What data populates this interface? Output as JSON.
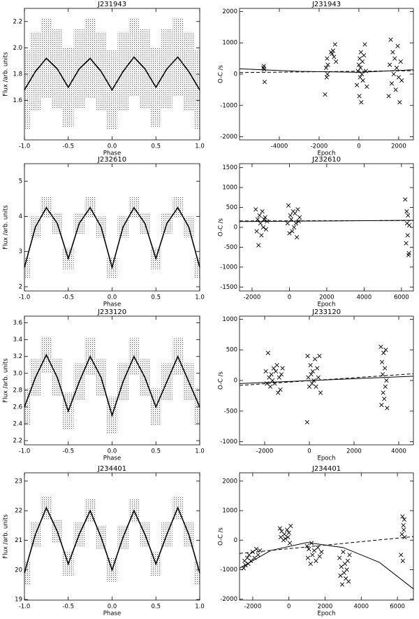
{
  "chart_data": [
    {
      "type": "line",
      "title": "J231943",
      "xlabel": "Phase",
      "ylabel": "Flux /arb. units",
      "x": [
        -1,
        -0.875,
        -0.75,
        -0.625,
        -0.5,
        -0.375,
        -0.25,
        -0.125,
        0,
        0.125,
        0.25,
        0.375,
        0.5,
        0.625,
        0.75,
        0.875,
        1
      ],
      "values": [
        1.68,
        1.82,
        1.92,
        1.84,
        1.7,
        1.84,
        1.92,
        1.82,
        1.68,
        1.82,
        1.93,
        1.84,
        1.7,
        1.84,
        1.93,
        1.82,
        1.68
      ],
      "upper": [
        1.98,
        2.12,
        2.22,
        2.14,
        2.0,
        2.14,
        2.22,
        2.12,
        1.98,
        2.12,
        2.23,
        2.14,
        2.0,
        2.14,
        2.23,
        2.12,
        1.98
      ],
      "lower": [
        1.38,
        1.52,
        1.62,
        1.54,
        1.4,
        1.54,
        1.62,
        1.52,
        1.38,
        1.52,
        1.63,
        1.54,
        1.4,
        1.54,
        1.63,
        1.52,
        1.38
      ],
      "xlim": [
        -1,
        1
      ],
      "ylim": [
        1.3,
        2.3
      ],
      "xticks": [
        {
          "value": -1,
          "label": "-1.0"
        },
        -0.5,
        {
          "value": 0,
          "label": "0.0"
        },
        0.5,
        {
          "value": 1,
          "label": "1.0"
        }
      ],
      "yticks": [
        1.6,
        1.8,
        {
          "value": 2,
          "label": "2.0"
        },
        2.2
      ]
    },
    {
      "type": "scatter",
      "title": "J231943",
      "xlabel": "Epoch",
      "ylabel": "O-C /s",
      "x": [
        -4800,
        -4780,
        -4760,
        -4740,
        -1700,
        -1650,
        -1620,
        -1600,
        -1580,
        -1560,
        -1400,
        -1350,
        -1300,
        -1250,
        -1200,
        -1150,
        -100,
        -50,
        0,
        20,
        40,
        60,
        80,
        100,
        120,
        150,
        180,
        200,
        250,
        300,
        350,
        400,
        1500,
        1550,
        1600,
        1650,
        1700,
        1750,
        1800,
        1850,
        1900,
        1950,
        2000,
        2050,
        2100,
        2150
      ],
      "values": [
        200,
        260,
        150,
        -250,
        -650,
        200,
        -100,
        500,
        0,
        300,
        700,
        650,
        750,
        550,
        950,
        400,
        -350,
        100,
        300,
        -700,
        500,
        -100,
        200,
        700,
        -900,
        0,
        400,
        -200,
        600,
        950,
        100,
        -400,
        -700,
        300,
        1100,
        -300,
        700,
        0,
        500,
        -500,
        200,
        900,
        -100,
        -900,
        400,
        -200
      ],
      "fits": [
        {
          "style": "solid",
          "x": [
            -6000,
            -3000,
            0,
            2740
          ],
          "values": [
            170,
            90,
            60,
            140
          ]
        },
        {
          "style": "dashed",
          "x": [
            -6000,
            2740
          ],
          "values": [
            50,
            110
          ]
        }
      ],
      "xlim": [
        -6000,
        2740
      ],
      "ylim": [
        -2100,
        2100
      ],
      "xticks": [
        -4000,
        -2000,
        0,
        2000
      ],
      "yticks": [
        -2000,
        -1000,
        0,
        1000,
        2000
      ]
    },
    {
      "type": "line",
      "title": "J232610",
      "xlabel": "Phase",
      "ylabel": "Flux /arb. units",
      "x": [
        -1,
        -0.875,
        -0.75,
        -0.625,
        -0.5,
        -0.375,
        -0.25,
        -0.125,
        0,
        0.125,
        0.25,
        0.375,
        0.5,
        0.625,
        0.75,
        0.875,
        1
      ],
      "values": [
        2.55,
        3.7,
        4.25,
        3.8,
        2.8,
        3.8,
        4.25,
        3.7,
        2.55,
        3.7,
        4.25,
        3.8,
        2.8,
        3.8,
        4.25,
        3.7,
        2.55
      ],
      "upper": [
        2.85,
        4.0,
        4.55,
        4.1,
        3.1,
        4.1,
        4.55,
        4.0,
        2.85,
        4.0,
        4.55,
        4.1,
        3.1,
        4.1,
        4.55,
        4.0,
        2.85
      ],
      "lower": [
        2.25,
        3.4,
        3.95,
        3.5,
        2.5,
        3.5,
        3.95,
        3.4,
        2.25,
        3.4,
        3.95,
        3.5,
        2.5,
        3.5,
        3.95,
        3.4,
        2.25
      ],
      "xlim": [
        -1,
        1
      ],
      "ylim": [
        1.88,
        5.5
      ],
      "xticks": [
        {
          "value": -1,
          "label": "-1.0"
        },
        -0.5,
        {
          "value": 0,
          "label": "0.0"
        },
        0.5,
        {
          "value": 1,
          "label": "1.0"
        }
      ],
      "yticks": [
        2,
        3,
        4,
        5
      ]
    },
    {
      "type": "scatter",
      "title": "J232610",
      "xlabel": "Epoch",
      "ylabel": "O-C /s",
      "x": [
        -1800,
        -1750,
        -1700,
        -1650,
        -1600,
        -1550,
        -1500,
        -1450,
        -1400,
        -1350,
        -1300,
        -1250,
        -1200,
        -100,
        -50,
        0,
        50,
        100,
        150,
        200,
        250,
        300,
        350,
        400,
        450,
        500,
        550,
        6200,
        6250,
        6280,
        6300,
        6330,
        6350,
        6380,
        6400,
        6420
      ],
      "values": [
        450,
        -100,
        200,
        -450,
        300,
        100,
        -200,
        400,
        0,
        200,
        250,
        -50,
        150,
        100,
        550,
        -150,
        300,
        200,
        -100,
        400,
        0,
        350,
        100,
        -250,
        450,
        150,
        250,
        700,
        -400,
        400,
        100,
        -200,
        300,
        -700,
        -650,
        50
      ],
      "fits": [
        {
          "style": "solid",
          "x": [
            -2670,
            6640
          ],
          "values": [
            145,
            175
          ]
        },
        {
          "style": "dashed",
          "x": [
            -2670,
            6640
          ],
          "values": [
            160,
            170
          ]
        }
      ],
      "xlim": [
        -2670,
        6640
      ],
      "ylim": [
        -1600,
        1600
      ],
      "xticks": [
        -2000,
        0,
        2000,
        4000,
        6000
      ],
      "yticks": [
        -1500,
        -1000,
        -500,
        0,
        500,
        1000,
        1500
      ]
    },
    {
      "type": "line",
      "title": "J233120",
      "xlabel": "Phase",
      "ylabel": "Flux /arb. units",
      "x": [
        -1,
        -0.875,
        -0.75,
        -0.625,
        -0.5,
        -0.375,
        -0.25,
        -0.125,
        0,
        0.125,
        0.25,
        0.375,
        0.5,
        0.625,
        0.75,
        0.875,
        1
      ],
      "values": [
        2.6,
        2.95,
        3.22,
        2.95,
        2.55,
        2.9,
        3.2,
        2.95,
        2.5,
        2.9,
        3.2,
        2.95,
        2.6,
        2.9,
        3.2,
        2.9,
        2.6
      ],
      "upper": [
        2.82,
        3.17,
        3.44,
        3.17,
        2.77,
        3.12,
        3.42,
        3.17,
        2.72,
        3.12,
        3.42,
        3.17,
        2.82,
        3.12,
        3.42,
        3.12,
        2.82
      ],
      "lower": [
        2.38,
        2.73,
        3.0,
        2.73,
        2.33,
        2.68,
        2.98,
        2.73,
        2.28,
        2.68,
        2.98,
        2.73,
        2.38,
        2.68,
        2.98,
        2.68,
        2.38
      ],
      "xlim": [
        -1,
        1
      ],
      "ylim": [
        2.15,
        3.68
      ],
      "xticks": [
        {
          "value": -1,
          "label": "-1.0"
        },
        -0.5,
        {
          "value": 0,
          "label": "0.0"
        },
        0.5,
        {
          "value": 1,
          "label": "1.0"
        }
      ],
      "yticks": [
        2.2,
        2.4,
        2.6,
        2.8,
        {
          "value": 3,
          "label": "3.0"
        },
        3.2,
        3.4,
        3.6
      ]
    },
    {
      "type": "scatter",
      "title": "J233120",
      "xlabel": "Epoch",
      "ylabel": "O-C /s",
      "x": [
        -1950,
        -1900,
        -1850,
        -1800,
        -1750,
        -1700,
        -1650,
        -1600,
        -1550,
        -1500,
        -1450,
        -1400,
        -1350,
        -1300,
        -1250,
        -1200,
        -100,
        -80,
        -50,
        0,
        50,
        80,
        120,
        150,
        200,
        250,
        300,
        350,
        400,
        450,
        500,
        3200,
        3230,
        3250,
        3280,
        3300,
        3320,
        3350,
        3380,
        3400,
        3420,
        3450,
        3480
      ],
      "values": [
        150,
        -50,
        450,
        50,
        -100,
        100,
        0,
        200,
        -50,
        150,
        250,
        -200,
        50,
        -150,
        100,
        200,
        -680,
        400,
        50,
        -100,
        250,
        100,
        -50,
        150,
        0,
        350,
        -100,
        200,
        50,
        400,
        -200,
        550,
        -400,
        300,
        100,
        -200,
        450,
        -300,
        200,
        -100,
        500,
        0,
        -450
      ],
      "fits": [
        {
          "style": "solid",
          "x": [
            -3125,
            4656
          ],
          "values": [
            -50,
            70
          ]
        },
        {
          "style": "dashed",
          "x": [
            -3125,
            4656
          ],
          "values": [
            -80,
            110
          ]
        }
      ],
      "xlim": [
        -3125,
        4656
      ],
      "ylim": [
        -1050,
        1050
      ],
      "xticks": [
        -2000,
        0,
        2000,
        4000
      ],
      "yticks": [
        -1000,
        -500,
        0,
        500,
        1000
      ]
    },
    {
      "type": "line",
      "title": "J234401",
      "xlabel": "Phase",
      "ylabel": "Flux /arb. units",
      "x": [
        -1,
        -0.875,
        -0.75,
        -0.625,
        -0.5,
        -0.375,
        -0.25,
        -0.125,
        0,
        0.125,
        0.25,
        0.375,
        0.5,
        0.625,
        0.75,
        0.875,
        1
      ],
      "values": [
        19.9,
        21.2,
        22.1,
        21.3,
        20.2,
        21.2,
        22.0,
        21.1,
        20.0,
        21.1,
        22.0,
        21.2,
        20.2,
        21.2,
        22.1,
        21.2,
        19.9
      ],
      "upper": [
        20.3,
        21.6,
        22.5,
        21.7,
        20.6,
        21.6,
        22.4,
        21.5,
        20.4,
        21.5,
        22.4,
        21.6,
        20.6,
        21.6,
        22.5,
        21.6,
        20.3
      ],
      "lower": [
        19.5,
        20.8,
        21.7,
        20.9,
        19.8,
        20.8,
        21.6,
        20.7,
        19.6,
        20.7,
        21.6,
        20.8,
        19.8,
        20.8,
        21.7,
        20.8,
        19.5
      ],
      "xlim": [
        -1,
        1
      ],
      "ylim": [
        18.98,
        23.28
      ],
      "xticks": [
        {
          "value": -1,
          "label": "-1.0"
        },
        -0.5,
        {
          "value": 0,
          "label": "0.0"
        },
        0.5,
        {
          "value": 1,
          "label": "1.0"
        }
      ],
      "yticks": [
        19,
        20,
        21,
        22,
        23
      ]
    },
    {
      "type": "scatter",
      "title": "J234401",
      "xlabel": "Epoch",
      "ylabel": "O-C /s",
      "x": [
        -2500,
        -2450,
        -2400,
        -2300,
        -2250,
        -2200,
        -2100,
        -2000,
        -1900,
        -1800,
        -1700,
        -1600,
        -500,
        -450,
        -400,
        -300,
        -250,
        -200,
        -100,
        -50,
        0,
        50,
        100,
        1000,
        1050,
        1100,
        1200,
        1250,
        1300,
        1400,
        1500,
        1600,
        1700,
        1800,
        2800,
        2850,
        2900,
        2950,
        3000,
        3050,
        3100,
        3150,
        3200,
        3250,
        3300,
        3350,
        6200,
        6250,
        6280,
        6300,
        6330,
        6350,
        6380,
        6400
      ],
      "values": [
        -950,
        -700,
        -850,
        -600,
        -800,
        -500,
        -700,
        -400,
        -600,
        -300,
        -500,
        -350,
        400,
        100,
        300,
        0,
        200,
        50,
        350,
        100,
        250,
        -100,
        480,
        -200,
        -600,
        -300,
        -800,
        -100,
        -500,
        -350,
        -700,
        -250,
        -550,
        -400,
        -600,
        -1200,
        -900,
        -1500,
        -400,
        -1100,
        -800,
        -1300,
        -1000,
        -700,
        -1400,
        -500,
        -500,
        200,
        800,
        -700,
        500,
        350,
        700,
        100
      ],
      "fits": [
        {
          "style": "solid",
          "x": [
            -2730,
            -1000,
            1000,
            3000,
            5000,
            6885
          ],
          "values": [
            -950,
            -350,
            -80,
            -250,
            -750,
            -1650
          ]
        },
        {
          "style": "dashed",
          "x": [
            -2730,
            6885
          ],
          "values": [
            -450,
            120
          ]
        }
      ],
      "xlim": [
        -2730,
        6885
      ],
      "ylim": [
        -2030,
        2280
      ],
      "xticks": [
        -2000,
        0,
        2000,
        4000,
        6000
      ],
      "yticks": [
        -2000,
        -1000,
        0,
        1000,
        2000
      ]
    }
  ]
}
